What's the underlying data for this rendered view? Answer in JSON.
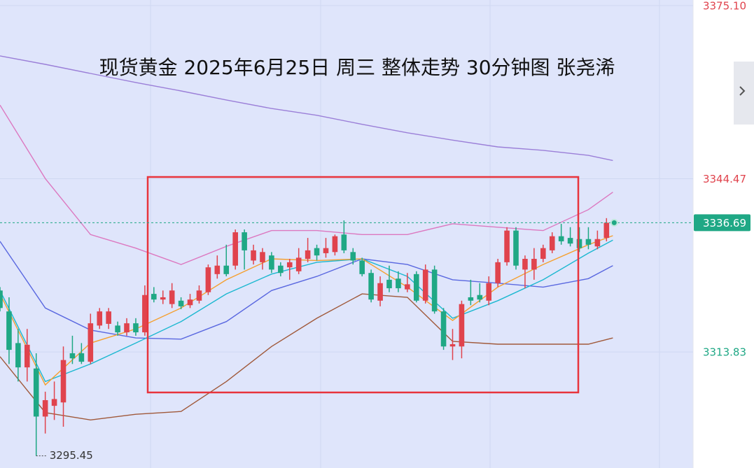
{
  "chart_data": {
    "type": "candlestick",
    "title": "现货黄金 2025年6月25日 周三 整体走势 30分钟图 张尧浠",
    "ylim": [
      3293.3,
      3376.09
    ],
    "yticks": [
      {
        "value": 3375.1,
        "label": "3375.10"
      },
      {
        "value": 3344.47,
        "label": "3344.47"
      },
      {
        "value": 3313.83,
        "label": "3313.83"
      }
    ],
    "grid": true,
    "last_price": 3336.69,
    "low_annotation": {
      "value": 3295.45,
      "label": "3295.45",
      "index": 4
    },
    "up_color": "#e0434d",
    "down_color": "#1fa885",
    "candles": [
      [
        3324.7,
        3325.3,
        3321.0,
        3321.6
      ],
      [
        3321.0,
        3323.5,
        3311.7,
        3314.2
      ],
      [
        3315.4,
        3317.9,
        3308.6,
        3311.1
      ],
      [
        3311.1,
        3317.9,
        3308.6,
        3315.1
      ],
      [
        3310.9,
        3313.6,
        3295.45,
        3302.4
      ],
      [
        3302.4,
        3306.8,
        3299.4,
        3305.3
      ],
      [
        3304.3,
        3308.6,
        3301.8,
        3305.5
      ],
      [
        3304.9,
        3314.8,
        3300.6,
        3312.4
      ],
      [
        3313.6,
        3316.7,
        3311.7,
        3312.7
      ],
      [
        3313.6,
        3315.4,
        3311.7,
        3312.1
      ],
      [
        3312.1,
        3320.6,
        3311.7,
        3318.9
      ],
      [
        3318.5,
        3321.6,
        3317.9,
        3321.0
      ],
      [
        3318.8,
        3321.6,
        3317.9,
        3321.0
      ],
      [
        3318.5,
        3319.2,
        3316.7,
        3317.3
      ],
      [
        3317.3,
        3319.8,
        3316.7,
        3318.9
      ],
      [
        3318.9,
        3319.8,
        3316.7,
        3317.3
      ],
      [
        3317.3,
        3325.6,
        3316.7,
        3323.9
      ],
      [
        3324.1,
        3325.3,
        3322.6,
        3323.1
      ],
      [
        3323.1,
        3324.7,
        3322.3,
        3323.5
      ],
      [
        3322.3,
        3326.0,
        3321.6,
        3324.7
      ],
      [
        3322.9,
        3323.5,
        3321.4,
        3321.9
      ],
      [
        3322.1,
        3324.1,
        3321.6,
        3323.1
      ],
      [
        3322.9,
        3325.6,
        3322.4,
        3324.7
      ],
      [
        3324.4,
        3329.3,
        3323.9,
        3328.8
      ],
      [
        3327.6,
        3330.9,
        3326.8,
        3329.1
      ],
      [
        3329.1,
        3332.8,
        3327.2,
        3327.6
      ],
      [
        3329.1,
        3335.5,
        3328.4,
        3335.0
      ],
      [
        3335.0,
        3335.5,
        3328.4,
        3331.8
      ],
      [
        3330.0,
        3332.8,
        3329.3,
        3331.8
      ],
      [
        3329.7,
        3332.2,
        3328.4,
        3331.5
      ],
      [
        3330.9,
        3331.5,
        3327.8,
        3328.4
      ],
      [
        3329.1,
        3329.7,
        3327.2,
        3327.8
      ],
      [
        3328.8,
        3330.3,
        3326.6,
        3329.7
      ],
      [
        3328.1,
        3332.2,
        3327.6,
        3330.5
      ],
      [
        3330.3,
        3334.0,
        3329.7,
        3331.8
      ],
      [
        3332.2,
        3332.8,
        3330.0,
        3330.9
      ],
      [
        3331.3,
        3334.0,
        3330.5,
        3332.2
      ],
      [
        3331.5,
        3334.6,
        3330.9,
        3334.3
      ],
      [
        3334.6,
        3337.1,
        3331.3,
        3331.8
      ],
      [
        3331.5,
        3332.2,
        3329.3,
        3330.0
      ],
      [
        3330.0,
        3330.5,
        3327.2,
        3327.6
      ],
      [
        3327.8,
        3328.4,
        3322.6,
        3323.1
      ],
      [
        3322.9,
        3327.2,
        3321.9,
        3326.0
      ],
      [
        3326.6,
        3329.1,
        3324.4,
        3325.1
      ],
      [
        3326.8,
        3328.1,
        3324.4,
        3325.1
      ],
      [
        3324.9,
        3327.8,
        3324.4,
        3325.8
      ],
      [
        3327.6,
        3328.1,
        3322.6,
        3322.9
      ],
      [
        3322.9,
        3329.3,
        3322.4,
        3328.4
      ],
      [
        3328.4,
        3329.1,
        3320.6,
        3321.0
      ],
      [
        3321.0,
        3321.6,
        3314.2,
        3314.8
      ],
      [
        3314.8,
        3317.9,
        3312.4,
        3315.2
      ],
      [
        3314.8,
        3322.9,
        3312.7,
        3322.3
      ],
      [
        3323.5,
        3326.6,
        3322.1,
        3322.9
      ],
      [
        3323.9,
        3326.0,
        3322.6,
        3323.1
      ],
      [
        3322.9,
        3327.2,
        3322.1,
        3326.0
      ],
      [
        3326.0,
        3330.3,
        3325.3,
        3329.7
      ],
      [
        3329.7,
        3335.9,
        3329.1,
        3335.3
      ],
      [
        3335.3,
        3335.9,
        3328.4,
        3329.1
      ],
      [
        3328.4,
        3330.9,
        3325.1,
        3330.3
      ],
      [
        3328.4,
        3332.2,
        3326.6,
        3330.3
      ],
      [
        3330.3,
        3332.8,
        3329.7,
        3332.2
      ],
      [
        3331.8,
        3335.0,
        3331.3,
        3334.3
      ],
      [
        3334.3,
        3336.5,
        3332.8,
        3333.4
      ],
      [
        3334.0,
        3335.9,
        3332.5,
        3333.0
      ],
      [
        3333.8,
        3335.9,
        3331.5,
        3332.2
      ],
      [
        3333.8,
        3335.9,
        3332.0,
        3332.8
      ],
      [
        3332.5,
        3335.3,
        3332.0,
        3333.8
      ],
      [
        3334.0,
        3337.5,
        3333.4,
        3336.69
      ]
    ],
    "lines": [
      {
        "color": "#9b7fd8",
        "x": [
          0,
          5,
          10,
          15,
          20,
          25,
          30,
          35,
          40,
          45,
          50,
          55,
          60,
          65,
          67.7
        ],
        "values": [
          3366.2,
          3364.7,
          3363.1,
          3361.5,
          3360.0,
          3358.4,
          3356.9,
          3355.7,
          3354.1,
          3352.6,
          3351.3,
          3350.1,
          3349.5,
          3348.6,
          3347.7
        ]
      },
      {
        "color": "#dc78c0",
        "x": [
          0,
          5,
          10,
          15,
          20,
          25,
          30,
          35,
          40,
          45,
          50,
          55,
          60,
          65,
          67.7
        ],
        "values": [
          3357.5,
          3344.5,
          3334.6,
          3332.2,
          3329.3,
          3332.5,
          3335.3,
          3335.3,
          3334.6,
          3334.6,
          3336.5,
          3335.9,
          3335.3,
          3339.0,
          3342.1
        ]
      },
      {
        "color": "#5a68e0",
        "x": [
          0,
          5,
          10,
          15,
          20,
          25,
          30,
          35,
          40,
          45,
          50,
          55,
          60,
          65,
          67.7
        ],
        "values": [
          3333.4,
          3321.6,
          3317.7,
          3316.3,
          3316.1,
          3319.2,
          3324.7,
          3327.2,
          3330.3,
          3329.3,
          3326.6,
          3326.0,
          3325.3,
          3326.8,
          3329.1
        ]
      },
      {
        "color": "#1cb8d0",
        "x": [
          0,
          5,
          10,
          15,
          20,
          25,
          30,
          35,
          40,
          45,
          50,
          55,
          60,
          65,
          67.7
        ],
        "values": [
          3324.7,
          3308.6,
          3311.7,
          3315.4,
          3319.2,
          3324.1,
          3327.6,
          3329.7,
          3330.3,
          3327.2,
          3319.8,
          3322.9,
          3326.6,
          3331.3,
          3333.6
        ]
      },
      {
        "color": "#f5a030",
        "x": [
          0,
          5,
          10,
          15,
          20,
          25,
          30,
          35,
          40,
          45,
          50,
          55,
          60,
          65,
          67.7
        ],
        "values": [
          3324.1,
          3308.0,
          3315.4,
          3317.9,
          3321.6,
          3326.6,
          3330.3,
          3330.0,
          3330.3,
          3325.3,
          3319.4,
          3325.3,
          3329.3,
          3332.8,
          3334.4
        ]
      },
      {
        "color": "#a0593a",
        "x": [
          0,
          5,
          10,
          15,
          20,
          25,
          30,
          35,
          40,
          45,
          50,
          55,
          60,
          65,
          67.7
        ],
        "values": [
          3313.0,
          3303.1,
          3301.8,
          3302.8,
          3303.3,
          3308.6,
          3314.8,
          3319.8,
          3324.1,
          3323.5,
          3315.7,
          3315.2,
          3315.2,
          3315.2,
          3316.3
        ]
      }
    ]
  }
}
